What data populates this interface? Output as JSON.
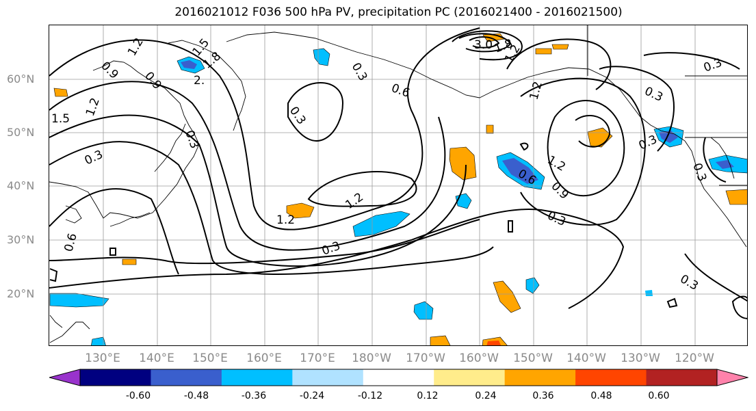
{
  "title": "2016021012 F036 500 hPa PV, precipitation PC (2016021400 - 2016021500)",
  "lat_labels": [
    "60°N",
    "50°N",
    "40°N",
    "30°N",
    "20°N"
  ],
  "lon_labels": [
    "130°E",
    "140°E",
    "150°E",
    "160°E",
    "170°E",
    "180°W",
    "170°W",
    "160°W",
    "150°W",
    "140°W",
    "130°W",
    "120°W"
  ],
  "contour_labels": [
    "0.9",
    "1.2",
    "0.9",
    "1.5",
    "1.8",
    "2.",
    "1.5",
    "1.2",
    "0.3",
    "0.6",
    "0.3",
    "0.3",
    "0.3",
    "0.6",
    "1.2",
    "1.2",
    "0.3",
    "3.0",
    "1.8",
    "1.2",
    "1.2",
    "0.3",
    "0.3",
    "1.2",
    "0.6",
    "0.9",
    "0.3",
    "0.3",
    "0.3",
    "0.3"
  ],
  "colorbar": {
    "ticks": [
      "-0.60",
      "-0.48",
      "-0.36",
      "-0.24",
      "-0.12",
      "0.12",
      "0.24",
      "0.36",
      "0.48",
      "0.60"
    ],
    "colors": [
      "#9933cc",
      "#000080",
      "#3a5fcd",
      "#00bfff",
      "#b0e2ff",
      "#ffffff",
      "#ffec8b",
      "#ffa500",
      "#ff4500",
      "#b22222",
      "#ff82ab"
    ]
  }
}
